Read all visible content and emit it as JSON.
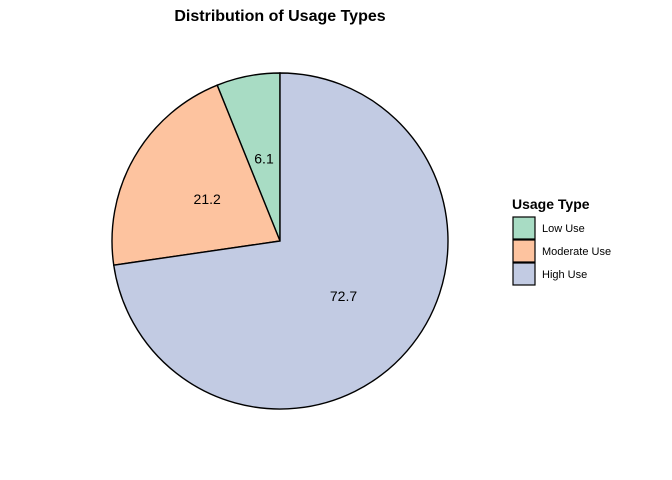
{
  "chart_data": {
    "type": "pie",
    "title": "Distribution of Usage Types",
    "categories": [
      "Low Use",
      "Moderate Use",
      "High Use"
    ],
    "values": [
      6.1,
      21.2,
      72.7
    ],
    "labels": [
      "6.1",
      "21.2",
      "72.7"
    ],
    "colors": [
      "#a8dcc4",
      "#fdc39f",
      "#c2cbe3"
    ],
    "outline_color": "#000000",
    "start_angle": "12 o'clock",
    "direction": "counter-clockwise",
    "legend": {
      "title": "Usage Type",
      "placement": "right",
      "entries": [
        "Low Use",
        "Moderate Use",
        "High Use"
      ]
    }
  }
}
